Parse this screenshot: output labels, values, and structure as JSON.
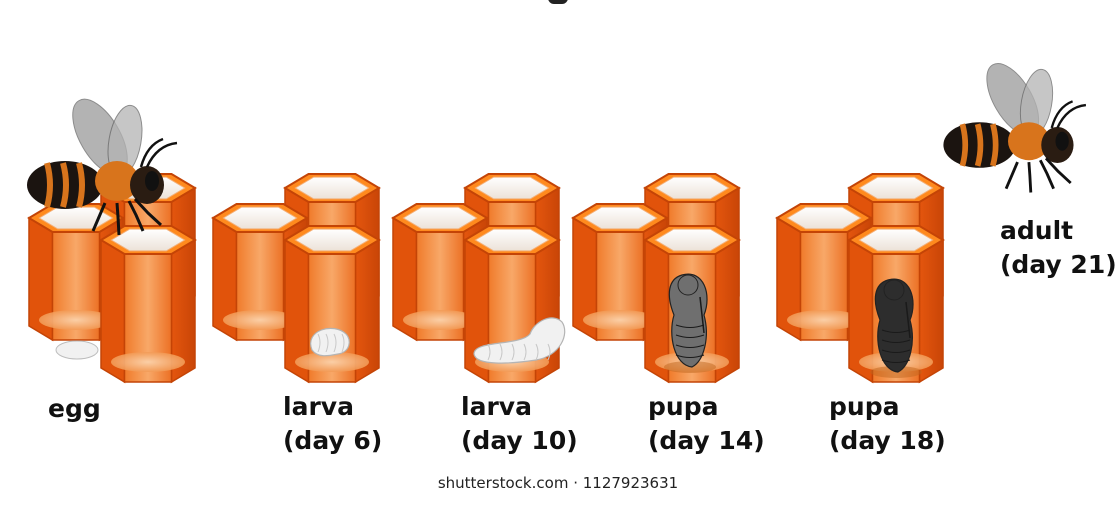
{
  "stages": [
    {
      "id": "egg",
      "lines": [
        "egg"
      ]
    },
    {
      "id": "larva-day-6",
      "lines": [
        "larva",
        "(day 6)"
      ]
    },
    {
      "id": "larva-day-10",
      "lines": [
        "larva",
        "(day 10)"
      ]
    },
    {
      "id": "pupa-day-14",
      "lines": [
        "pupa",
        "(day 14)"
      ]
    },
    {
      "id": "pupa-day-18",
      "lines": [
        "pupa",
        "(day 18)"
      ]
    },
    {
      "id": "adult-day-21",
      "lines": [
        "adult",
        "(day 21)"
      ]
    }
  ],
  "watermark": "shutterstock.com · 1127923631",
  "colors": {
    "honeycomb_top": "#ff8a1e",
    "honeycomb_side": "#e1530b",
    "honeycomb_dark": "#c44406",
    "cell_glass": "#f6a45e",
    "cell_glass_light": "#fbc494",
    "bee_body": "#1b1410",
    "bee_stripe": "#d8741c",
    "bee_wing": "#9a9a9a",
    "larva": "#f1f1f1",
    "pupa_light": "#6f6f6f",
    "pupa_dark": "#2d2d2d"
  }
}
